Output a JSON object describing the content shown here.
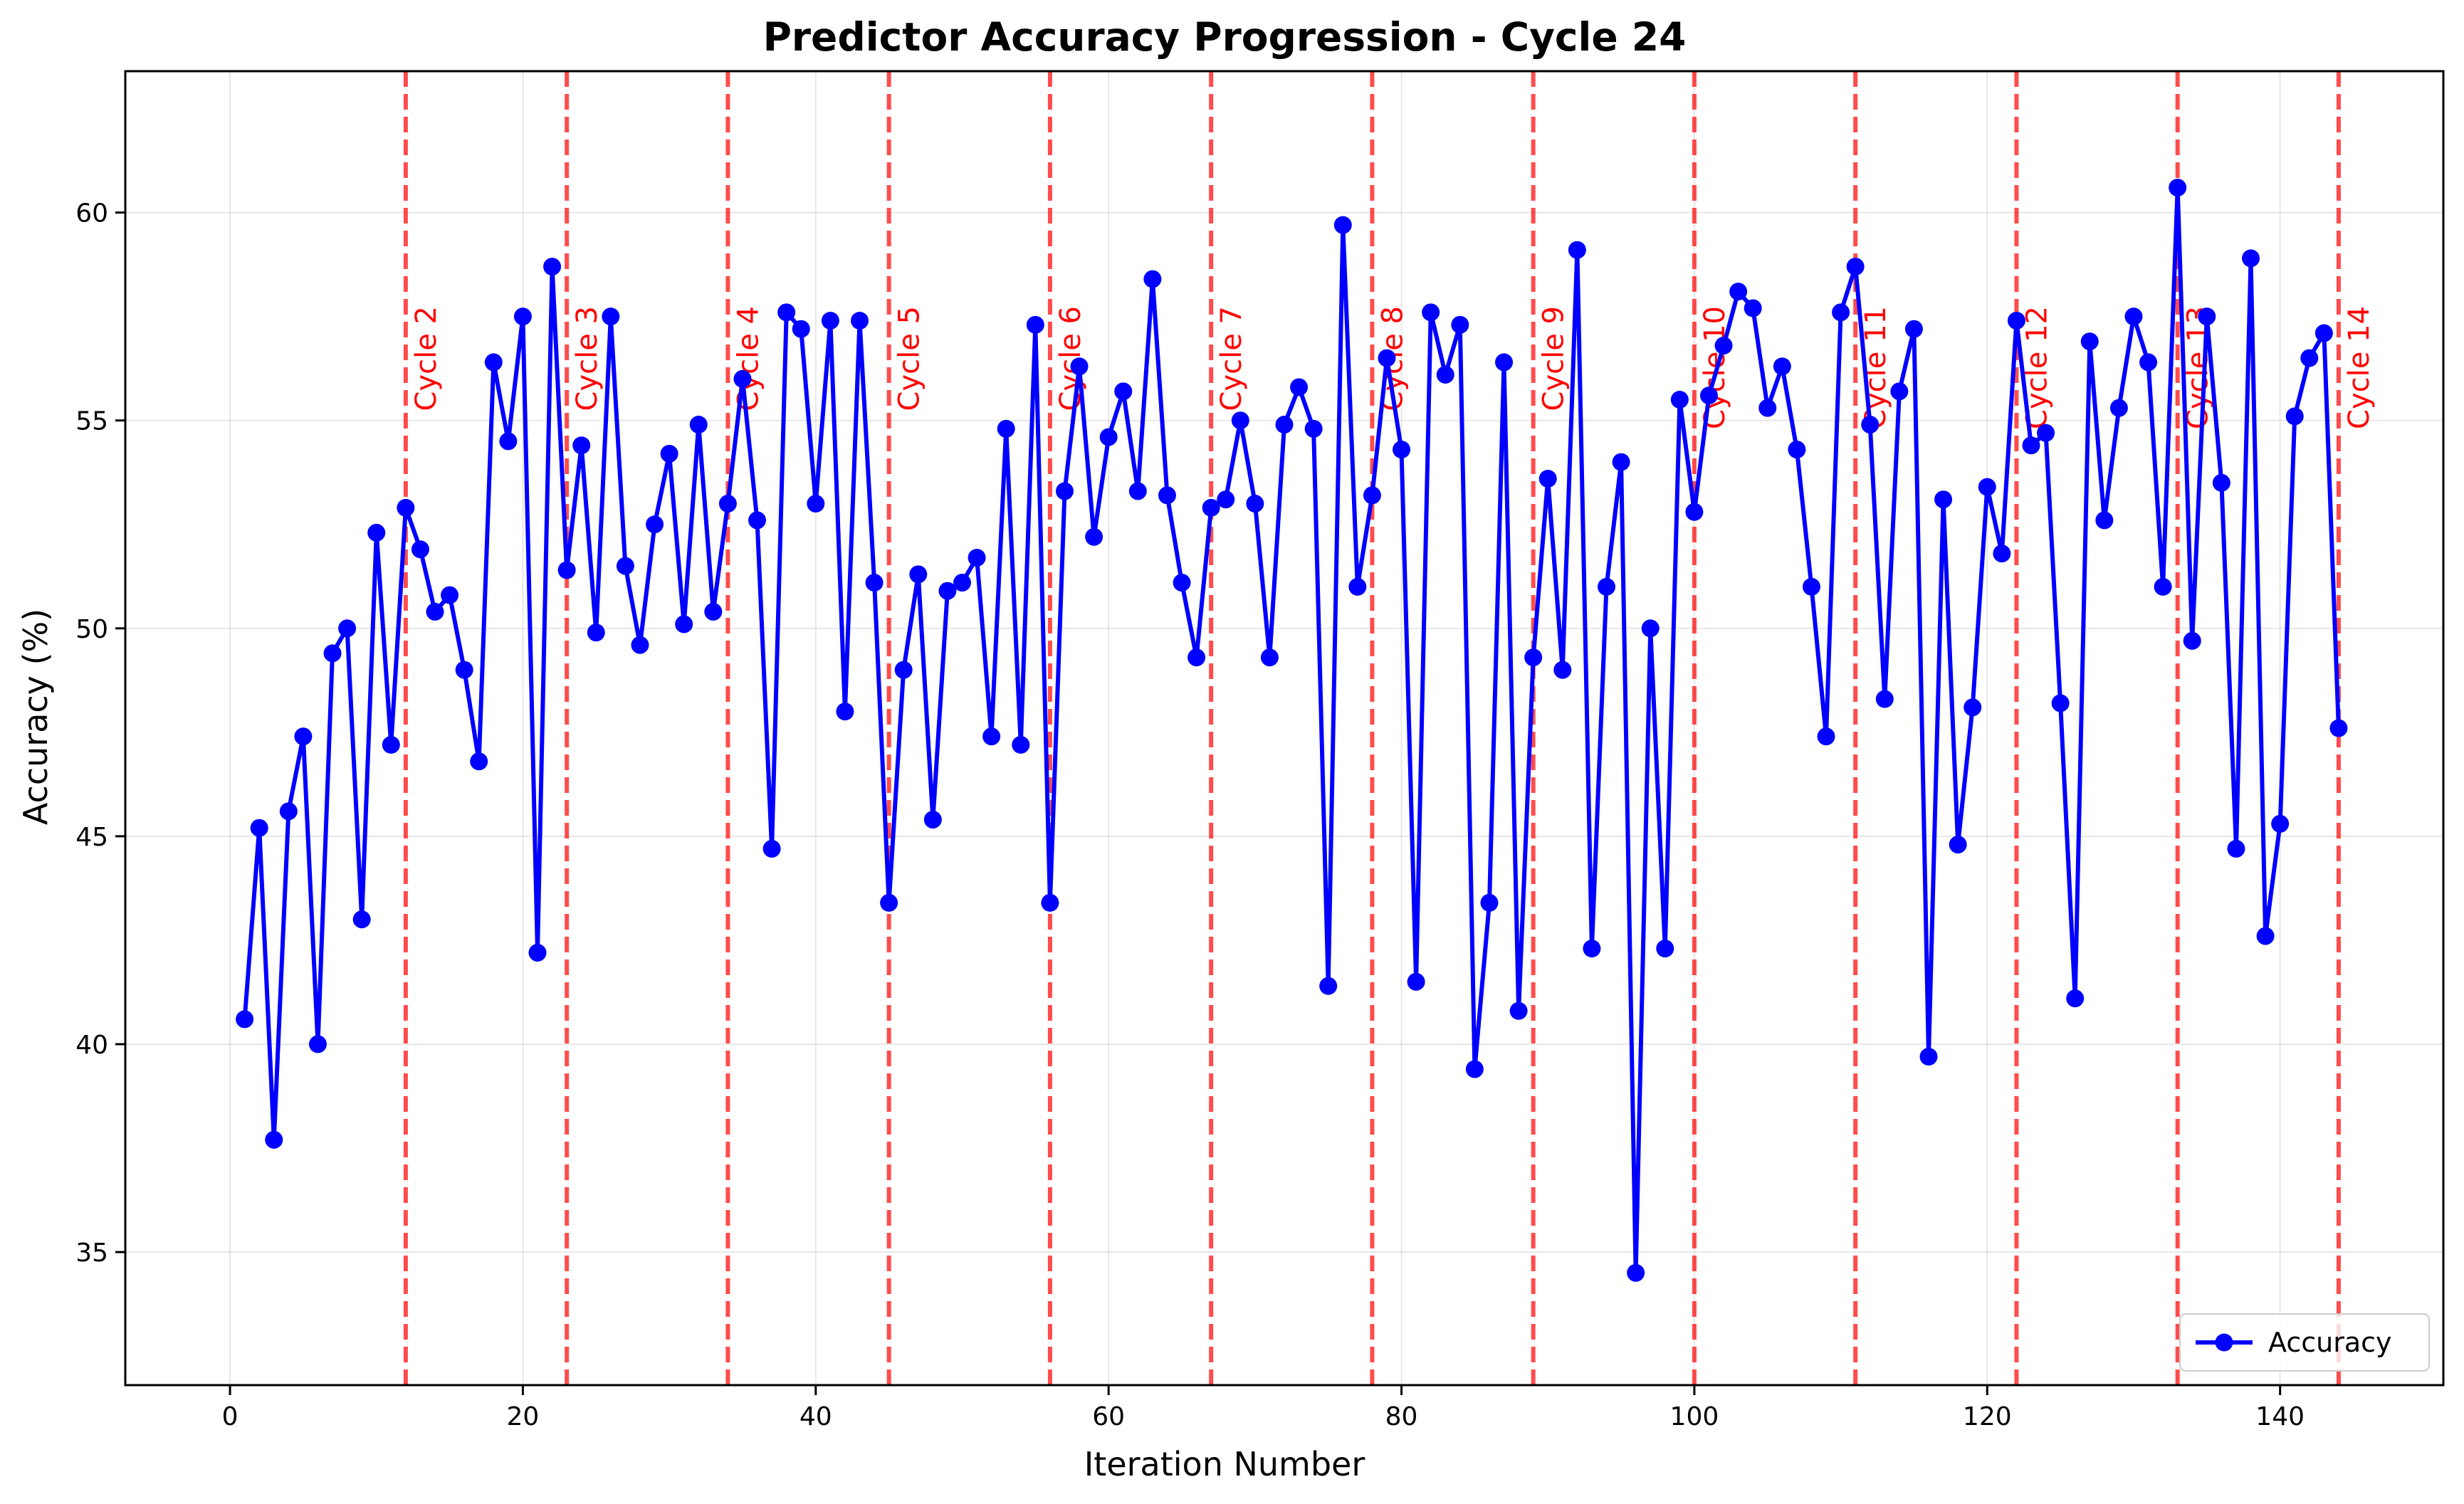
{
  "chart_data": {
    "type": "line",
    "title": "Predictor Accuracy Progression - Cycle 24",
    "xlabel": "Iteration Number",
    "ylabel": "Accuracy (%)",
    "xlim": [
      -7.15,
      151.15
    ],
    "ylim": [
      31.8,
      63.4
    ],
    "xticks": [
      0,
      20,
      40,
      60,
      80,
      100,
      120,
      140
    ],
    "yticks": [
      35,
      40,
      45,
      50,
      55,
      60
    ],
    "grid": true,
    "legend_position": "lower right",
    "series": [
      {
        "name": "Accuracy",
        "color": "#0000ff",
        "marker": "circle",
        "x": [
          1,
          2,
          3,
          4,
          5,
          6,
          7,
          8,
          9,
          10,
          11,
          12,
          13,
          14,
          15,
          16,
          17,
          18,
          19,
          20,
          21,
          22,
          23,
          24,
          25,
          26,
          27,
          28,
          29,
          30,
          31,
          32,
          33,
          34,
          35,
          36,
          37,
          38,
          39,
          40,
          41,
          42,
          43,
          44,
          45,
          46,
          47,
          48,
          49,
          50,
          51,
          52,
          53,
          54,
          55,
          56,
          57,
          58,
          59,
          60,
          61,
          62,
          63,
          64,
          65,
          66,
          67,
          68,
          69,
          70,
          71,
          72,
          73,
          74,
          75,
          76,
          77,
          78,
          79,
          80,
          81,
          82,
          83,
          84,
          85,
          86,
          87,
          88,
          89,
          90,
          91,
          92,
          93,
          94,
          95,
          96,
          97,
          98,
          99,
          100,
          101,
          102,
          103,
          104,
          105,
          106,
          107,
          108,
          109,
          110,
          111,
          112,
          113,
          114,
          115,
          116,
          117,
          118,
          119,
          120,
          121,
          122,
          123,
          124,
          125,
          126,
          127,
          128,
          129,
          130,
          131,
          132,
          133,
          134,
          135,
          136,
          137,
          138,
          139,
          140,
          141,
          142,
          143,
          144
        ],
        "values": [
          40.6,
          45.2,
          37.7,
          45.6,
          47.4,
          40.0,
          49.4,
          50.0,
          43.0,
          52.3,
          47.2,
          52.9,
          51.9,
          50.4,
          50.8,
          49.0,
          46.8,
          56.4,
          54.5,
          57.5,
          42.2,
          58.7,
          51.4,
          54.4,
          49.9,
          57.5,
          51.5,
          49.6,
          52.5,
          54.2,
          50.1,
          54.9,
          50.4,
          53.0,
          56.0,
          52.6,
          44.7,
          57.6,
          57.2,
          53.0,
          57.4,
          48.0,
          57.4,
          51.1,
          43.4,
          49.0,
          51.3,
          45.4,
          50.9,
          51.1,
          51.7,
          47.4,
          54.8,
          47.2,
          57.3,
          43.4,
          53.3,
          56.3,
          52.2,
          54.6,
          55.7,
          53.3,
          58.4,
          53.2,
          51.1,
          49.3,
          52.9,
          53.1,
          55.0,
          53.0,
          49.3,
          54.9,
          55.8,
          54.8,
          41.4,
          59.7,
          51.0,
          53.2,
          56.5,
          54.3,
          41.5,
          57.6,
          56.1,
          57.3,
          39.4,
          43.4,
          56.4,
          40.8,
          49.3,
          53.6,
          49.0,
          59.1,
          42.3,
          51.0,
          54.0,
          34.5,
          50.0,
          42.3,
          55.5,
          52.8,
          55.6,
          56.8,
          58.1,
          57.7,
          55.3,
          56.3,
          54.3,
          51.0,
          47.4,
          57.6,
          58.7,
          54.9,
          48.3,
          55.7,
          57.2,
          39.7,
          53.1,
          44.8,
          48.1,
          53.4,
          51.8,
          57.4,
          54.4,
          54.7,
          48.2,
          41.1,
          56.9,
          52.6,
          55.3,
          57.5,
          56.4,
          51.0,
          60.6,
          49.7,
          57.5,
          53.5,
          44.7,
          58.9,
          42.6,
          45.3,
          55.1,
          56.5,
          57.1,
          47.6
        ]
      }
    ],
    "vlines": {
      "color": "#ff0000",
      "style": "dashed",
      "lines": [
        {
          "x": 12,
          "label": "Cycle 2"
        },
        {
          "x": 23,
          "label": "Cycle 3"
        },
        {
          "x": 34,
          "label": "Cycle 4"
        },
        {
          "x": 45,
          "label": "Cycle 5"
        },
        {
          "x": 56,
          "label": "Cycle 6"
        },
        {
          "x": 67,
          "label": "Cycle 7"
        },
        {
          "x": 78,
          "label": "Cycle 8"
        },
        {
          "x": 89,
          "label": "Cycle 9"
        },
        {
          "x": 100,
          "label": "Cycle 10"
        },
        {
          "x": 111,
          "label": "Cycle 11"
        },
        {
          "x": 122,
          "label": "Cycle 12"
        },
        {
          "x": 133,
          "label": "Cycle 13"
        },
        {
          "x": 144,
          "label": "Cycle 14"
        }
      ]
    }
  }
}
